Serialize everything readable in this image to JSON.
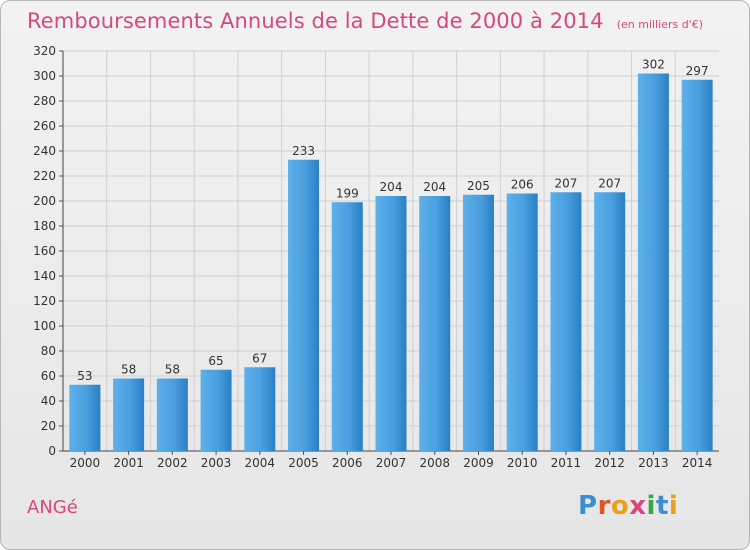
{
  "header": {
    "title": "Remboursements Annuels de la Dette de 2000 à 2014",
    "unit": "(en milliers d'€)"
  },
  "footer": {
    "commune": "ANGé",
    "logo_text": "Proxiti",
    "logo_colors": [
      "#3a8fd0",
      "#e0542a",
      "#e8a21a",
      "#d6487e",
      "#3aa84a",
      "#3a8fd0",
      "#e8a21a"
    ]
  },
  "colors": {
    "title": "#d6487e",
    "bar_light": "#5fb0ea",
    "bar_dark": "#2a7fc4",
    "grid": "#d0d0d0"
  },
  "chart_data": {
    "type": "bar",
    "title": "Remboursements Annuels de la Dette de 2000 à 2014",
    "categories": [
      "2000",
      "2001",
      "2002",
      "2003",
      "2004",
      "2005",
      "2006",
      "2007",
      "2008",
      "2009",
      "2010",
      "2011",
      "2012",
      "2013",
      "2014"
    ],
    "values": [
      53,
      58,
      58,
      65,
      67,
      233,
      199,
      204,
      204,
      205,
      206,
      207,
      207,
      302,
      297
    ],
    "ylim": [
      0,
      320
    ],
    "yticks": [
      0,
      20,
      40,
      60,
      80,
      100,
      120,
      140,
      160,
      180,
      200,
      220,
      240,
      260,
      280,
      300,
      320
    ],
    "grid": true,
    "xlabel": "",
    "ylabel": ""
  }
}
